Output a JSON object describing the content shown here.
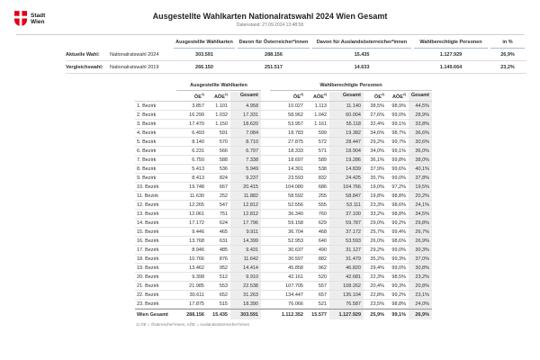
{
  "brand": {
    "logo_line1": "Stadt",
    "logo_line2": "Wien"
  },
  "header": {
    "title": "Ausgestellte Wahlkarten Nationalratswahl 2024 Wien Gesamt",
    "datenstand": "Datenstand: 27.09.2024 13:48:58"
  },
  "summary": {
    "columns": [
      "Ausgestellte Wahlkarten",
      "Davon für Österreicher*innen",
      "Davon für Auslandsösterreicher*innen",
      "Wahlberechtigte Personen",
      "in %"
    ],
    "rows": [
      {
        "label": "Aktuelle Wahl:",
        "election": "Nationalratswahl 2024",
        "values": [
          "303.591",
          "288.156",
          "15.435",
          "1.127.929",
          "26,9%"
        ]
      },
      {
        "label": "Vergleichswahl:",
        "election": "Nationalratswahl 2019",
        "values": [
          "266.150",
          "251.517",
          "14.633",
          "1.149.664",
          "23,2%"
        ]
      }
    ]
  },
  "table": {
    "group_headers": [
      "Ausgestellte Wahlkarten",
      "Wahlberechtigte Personen"
    ],
    "sub_headers": [
      {
        "t": "ÖE",
        "s": "1)"
      },
      {
        "t": "AÖE",
        "s": "1)"
      },
      {
        "t": "Gesamt",
        "s": ""
      },
      {
        "t": "ÖE",
        "s": "2)"
      },
      {
        "t": "AÖE",
        "s": "2)"
      },
      {
        "t": "Gesamt",
        "s": ""
      },
      {
        "t": "ÖE",
        "s": "2)"
      },
      {
        "t": "AÖE",
        "s": "2)"
      },
      {
        "t": "Gesamt",
        "s": ""
      }
    ],
    "rows": [
      {
        "bezirk": "1. Bezirk",
        "values": [
          "3.857",
          "1.101",
          "4.958",
          "10.027",
          "1.113",
          "11.140",
          "38,5%",
          "98,9%",
          "44,5%"
        ]
      },
      {
        "bezirk": "2. Bezirk",
        "values": [
          "16.299",
          "1.032",
          "17.331",
          "58.962",
          "1.042",
          "60.004",
          "27,6%",
          "99,0%",
          "28,9%"
        ]
      },
      {
        "bezirk": "3. Bezirk",
        "values": [
          "17.470",
          "1.150",
          "18.620",
          "53.957",
          "1.161",
          "55.118",
          "32,4%",
          "99,1%",
          "33,8%"
        ]
      },
      {
        "bezirk": "4. Bezirk",
        "values": [
          "6.493",
          "591",
          "7.084",
          "18.783",
          "599",
          "19.382",
          "34,6%",
          "98,7%",
          "36,6%"
        ]
      },
      {
        "bezirk": "5. Bezirk",
        "values": [
          "8.140",
          "570",
          "8.710",
          "27.875",
          "572",
          "28.447",
          "29,2%",
          "99,7%",
          "30,6%"
        ]
      },
      {
        "bezirk": "6. Bezirk",
        "values": [
          "6.231",
          "566",
          "6.797",
          "18.333",
          "571",
          "18.904",
          "34,0%",
          "99,1%",
          "36,0%"
        ]
      },
      {
        "bezirk": "7. Bezirk",
        "values": [
          "6.750",
          "588",
          "7.338",
          "18.697",
          "589",
          "19.286",
          "36,1%",
          "99,8%",
          "38,0%"
        ]
      },
      {
        "bezirk": "8. Bezirk",
        "values": [
          "5.413",
          "536",
          "5.949",
          "14.301",
          "538",
          "14.839",
          "37,9%",
          "99,6%",
          "40,1%"
        ]
      },
      {
        "bezirk": "9. Bezirk",
        "values": [
          "8.413",
          "824",
          "9.237",
          "23.593",
          "832",
          "24.425",
          "35,7%",
          "99,0%",
          "37,8%"
        ]
      },
      {
        "bezirk": "10. Bezirk",
        "values": [
          "19.748",
          "667",
          "20.415",
          "104.080",
          "686",
          "104.766",
          "19,0%",
          "97,2%",
          "19,5%"
        ]
      },
      {
        "bezirk": "11. Bezirk",
        "values": [
          "11.630",
          "252",
          "11.882",
          "58.592",
          "255",
          "58.847",
          "19,8%",
          "98,8%",
          "20,2%"
        ]
      },
      {
        "bezirk": "12. Bezirk",
        "values": [
          "12.265",
          "547",
          "12.812",
          "52.556",
          "555",
          "53.111",
          "23,3%",
          "98,6%",
          "24,1%"
        ]
      },
      {
        "bezirk": "13. Bezirk",
        "values": [
          "12.061",
          "751",
          "12.812",
          "36.340",
          "760",
          "37.100",
          "33,2%",
          "98,8%",
          "34,5%"
        ]
      },
      {
        "bezirk": "14. Bezirk",
        "values": [
          "17.172",
          "624",
          "17.796",
          "59.158",
          "629",
          "59.787",
          "29,0%",
          "99,2%",
          "29,8%"
        ]
      },
      {
        "bezirk": "15. Bezirk",
        "values": [
          "9.446",
          "465",
          "9.911",
          "36.704",
          "468",
          "37.172",
          "25,7%",
          "99,4%",
          "26,7%"
        ]
      },
      {
        "bezirk": "16. Bezirk",
        "values": [
          "13.768",
          "631",
          "14.399",
          "52.953",
          "640",
          "53.593",
          "26,0%",
          "98,6%",
          "26,9%"
        ]
      },
      {
        "bezirk": "17. Bezirk",
        "values": [
          "8.946",
          "485",
          "9.431",
          "30.637",
          "490",
          "31.127",
          "29,2%",
          "99,0%",
          "30,3%"
        ]
      },
      {
        "bezirk": "18. Bezirk",
        "values": [
          "10.766",
          "876",
          "11.642",
          "30.597",
          "882",
          "31.479",
          "35,2%",
          "99,3%",
          "37,0%"
        ]
      },
      {
        "bezirk": "19. Bezirk",
        "values": [
          "13.462",
          "952",
          "14.414",
          "45.858",
          "962",
          "46.820",
          "29,4%",
          "99,0%",
          "30,8%"
        ]
      },
      {
        "bezirk": "20. Bezirk",
        "values": [
          "9.398",
          "512",
          "9.910",
          "42.161",
          "520",
          "42.681",
          "22,3%",
          "98,5%",
          "23,2%"
        ]
      },
      {
        "bezirk": "21. Bezirk",
        "values": [
          "21.985",
          "553",
          "22.538",
          "107.705",
          "557",
          "108.262",
          "20,4%",
          "99,3%",
          "20,8%"
        ]
      },
      {
        "bezirk": "22. Bezirk",
        "values": [
          "30.611",
          "652",
          "31.263",
          "134.447",
          "657",
          "135.104",
          "22,8%",
          "99,2%",
          "23,1%"
        ]
      },
      {
        "bezirk": "23. Bezirk",
        "values": [
          "17.875",
          "515",
          "18.390",
          "76.066",
          "521",
          "76.587",
          "23,5%",
          "98,8%",
          "24,0%"
        ]
      }
    ],
    "total_row": {
      "bezirk": "Wien Gesamt",
      "values": [
        "288.156",
        "15.435",
        "303.591",
        "1.112.352",
        "15.577",
        "1.127.929",
        "25,9%",
        "99,1%",
        "26,9%"
      ]
    },
    "footnote": "1) ÖE = Österreicher*innen, AÖE = Auslandsösterreicher*innen"
  },
  "colors": {
    "brand_red": "#e2001a",
    "header_underline": "#a9bdd6",
    "column_shade": "#ededed",
    "text": "#2e2e2e"
  }
}
